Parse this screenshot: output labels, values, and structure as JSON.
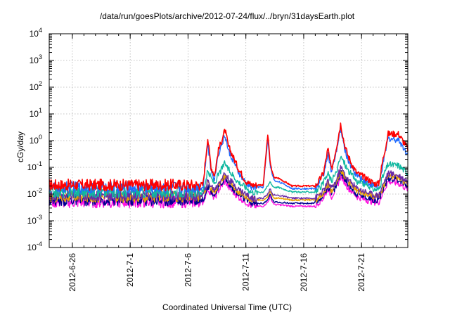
{
  "chart_data": {
    "type": "line",
    "title": "/data/run/goesPlots/archive/2012-07-24/flux/../bryn/31daysEarth.plot",
    "xlabel": "Coordinated Universal Time (UTC)",
    "ylabel": "cGy/day",
    "yscale": "log",
    "ylim": [
      0.0001,
      10000
    ],
    "xlim_days": [
      0,
      31
    ],
    "grid": true,
    "legend": "none",
    "y_ticks": [
      {
        "base": "10",
        "exp": "-4",
        "value": 0.0001
      },
      {
        "base": "10",
        "exp": "-3",
        "value": 0.001
      },
      {
        "base": "10",
        "exp": "-2",
        "value": 0.01
      },
      {
        "base": "10",
        "exp": "-1",
        "value": 0.1
      },
      {
        "base": "10",
        "exp": "0",
        "value": 1
      },
      {
        "base": "10",
        "exp": "1",
        "value": 10
      },
      {
        "base": "10",
        "exp": "2",
        "value": 100
      },
      {
        "base": "10",
        "exp": "3",
        "value": 1000
      },
      {
        "base": "10",
        "exp": "4",
        "value": 10000
      }
    ],
    "x_ticks": [
      {
        "label": "2012-6-26",
        "day": 2
      },
      {
        "label": "2012-7-1",
        "day": 7
      },
      {
        "label": "2012-7-6",
        "day": 12
      },
      {
        "label": "2012-7-11",
        "day": 17
      },
      {
        "label": "2012-7-16",
        "day": 22
      },
      {
        "label": "2012-7-21",
        "day": 27
      }
    ],
    "x": [
      0,
      13.3,
      13.7,
      14,
      14.3,
      14.6,
      15.2,
      15.5,
      15.9,
      16.3,
      17,
      17.5,
      18.5,
      18.9,
      19.1,
      19.3,
      19.5,
      19.8,
      21,
      23,
      23.3,
      23.7,
      24.1,
      24.4,
      24.8,
      25.2,
      25.5,
      25.8,
      26.2,
      26.6,
      27.4,
      28.1,
      28.5,
      28.8,
      29.3,
      30.2,
      31
    ],
    "series": [
      {
        "name": "red",
        "color": "#ff0000",
        "values": [
          0.022,
          0.022,
          1.3,
          0.1,
          0.05,
          0.4,
          2.5,
          0.6,
          0.25,
          0.1,
          0.03,
          0.022,
          0.022,
          1.8,
          0.15,
          0.06,
          0.04,
          0.04,
          0.02,
          0.02,
          0.03,
          0.06,
          0.5,
          0.08,
          0.5,
          4.5,
          0.8,
          0.3,
          0.12,
          0.06,
          0.04,
          0.025,
          0.025,
          0.15,
          1.8,
          1.8,
          0.5
        ]
      },
      {
        "name": "blue",
        "color": "#1f6bff",
        "values": [
          0.018,
          0.018,
          0.8,
          0.07,
          0.04,
          0.3,
          1.6,
          0.4,
          0.18,
          0.07,
          0.025,
          0.018,
          0.018,
          1.2,
          0.12,
          0.05,
          0.03,
          0.03,
          0.016,
          0.016,
          0.025,
          0.05,
          0.35,
          0.06,
          0.35,
          2.8,
          0.6,
          0.2,
          0.09,
          0.05,
          0.03,
          0.02,
          0.02,
          0.1,
          1.2,
          1.1,
          0.3
        ]
      },
      {
        "name": "teal",
        "color": "#10b8a0",
        "values": [
          0.012,
          0.012,
          0.07,
          0.04,
          0.025,
          0.05,
          0.15,
          0.08,
          0.05,
          0.03,
          0.018,
          0.012,
          0.012,
          0.02,
          0.03,
          0.02,
          0.018,
          0.018,
          0.012,
          0.012,
          0.015,
          0.025,
          0.06,
          0.03,
          0.06,
          0.25,
          0.15,
          0.08,
          0.05,
          0.03,
          0.022,
          0.015,
          0.015,
          0.04,
          0.13,
          0.12,
          0.06
        ]
      },
      {
        "name": "purple",
        "color": "#6a2aa6",
        "values": [
          0.009,
          0.009,
          0.03,
          0.02,
          0.014,
          0.025,
          0.06,
          0.035,
          0.025,
          0.016,
          0.01,
          0.007,
          0.007,
          0.01,
          0.016,
          0.01,
          0.009,
          0.009,
          0.007,
          0.007,
          0.009,
          0.013,
          0.03,
          0.016,
          0.03,
          0.1,
          0.06,
          0.035,
          0.025,
          0.016,
          0.012,
          0.009,
          0.009,
          0.02,
          0.06,
          0.05,
          0.03
        ]
      },
      {
        "name": "orange",
        "color": "#e8a000",
        "values": [
          0.008,
          0.008,
          0.025,
          0.017,
          0.012,
          0.02,
          0.05,
          0.03,
          0.02,
          0.013,
          0.008,
          0.006,
          0.006,
          0.008,
          0.013,
          0.008,
          0.007,
          0.007,
          0.006,
          0.006,
          0.008,
          0.011,
          0.025,
          0.013,
          0.025,
          0.08,
          0.05,
          0.03,
          0.02,
          0.013,
          0.01,
          0.008,
          0.008,
          0.016,
          0.05,
          0.04,
          0.025
        ]
      },
      {
        "name": "navy",
        "color": "#000090",
        "values": [
          0.006,
          0.006,
          0.02,
          0.013,
          0.009,
          0.016,
          0.04,
          0.025,
          0.016,
          0.01,
          0.006,
          0.0045,
          0.0045,
          0.006,
          0.01,
          0.006,
          0.005,
          0.005,
          0.0045,
          0.0045,
          0.006,
          0.009,
          0.02,
          0.01,
          0.02,
          0.06,
          0.04,
          0.025,
          0.016,
          0.01,
          0.008,
          0.006,
          0.006,
          0.013,
          0.04,
          0.035,
          0.02
        ]
      },
      {
        "name": "magenta",
        "color": "#ff10e0",
        "values": [
          0.005,
          0.005,
          0.016,
          0.01,
          0.007,
          0.013,
          0.03,
          0.018,
          0.012,
          0.008,
          0.005,
          0.0035,
          0.0035,
          0.005,
          0.008,
          0.005,
          0.004,
          0.004,
          0.0035,
          0.0035,
          0.005,
          0.007,
          0.016,
          0.008,
          0.016,
          0.045,
          0.03,
          0.018,
          0.012,
          0.008,
          0.006,
          0.005,
          0.005,
          0.01,
          0.03,
          0.025,
          0.015
        ]
      }
    ]
  }
}
